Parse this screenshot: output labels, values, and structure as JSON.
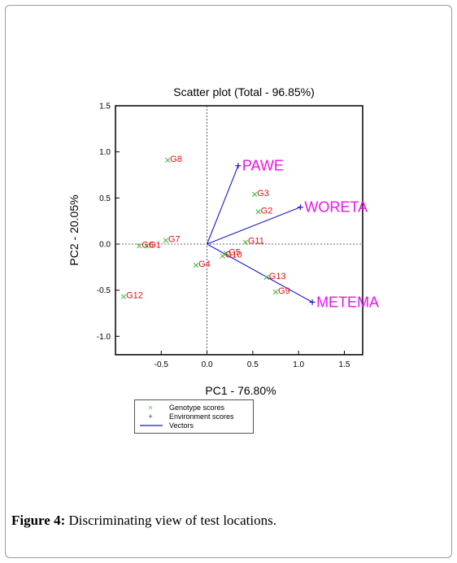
{
  "chart_data": {
    "type": "scatter",
    "title": "Scatter plot (Total - 96.85%)",
    "xlabel": "PC1 - 76.80%",
    "ylabel": "PC2 - 20.05%",
    "xlim": [
      -1.0,
      1.7
    ],
    "ylim": [
      -1.2,
      1.5
    ],
    "x_ticks": [
      -0.5,
      0.0,
      0.5,
      1.0,
      1.5
    ],
    "x_tick_labels": [
      "-0.5",
      "0.0",
      "0.5",
      "1.0",
      "1.5"
    ],
    "y_ticks": [
      -1.0,
      -0.5,
      0.0,
      0.5,
      1.0,
      1.5
    ],
    "y_tick_labels": [
      "-1.0",
      "-0.5",
      "0.0",
      "0.5",
      "1.0",
      "1.5"
    ],
    "reference_lines": "dotted lines at x=0 and y=0",
    "genotypes": [
      {
        "label": "G8",
        "x": -0.43,
        "y": 0.91
      },
      {
        "label": "G3",
        "x": 0.52,
        "y": 0.54
      },
      {
        "label": "G2",
        "x": 0.56,
        "y": 0.35
      },
      {
        "label": "G7",
        "x": -0.45,
        "y": 0.04
      },
      {
        "label": "G6",
        "x": -0.74,
        "y": -0.02
      },
      {
        "label": "G1",
        "x": -0.66,
        "y": -0.02
      },
      {
        "label": "G11",
        "x": 0.42,
        "y": 0.02
      },
      {
        "label": "G5",
        "x": 0.21,
        "y": -0.1
      },
      {
        "label": "G10",
        "x": 0.17,
        "y": -0.13
      },
      {
        "label": "G4",
        "x": -0.12,
        "y": -0.23
      },
      {
        "label": "G13",
        "x": 0.65,
        "y": -0.36
      },
      {
        "label": "G9",
        "x": 0.75,
        "y": -0.52
      },
      {
        "label": "G12",
        "x": -0.91,
        "y": -0.57
      }
    ],
    "environments": [
      {
        "label": "PAWE",
        "x": 0.34,
        "y": 0.85
      },
      {
        "label": "WORETA",
        "x": 1.02,
        "y": 0.4
      },
      {
        "label": "METEMA",
        "x": 1.15,
        "y": -0.63
      }
    ],
    "legend": {
      "position": "below plot",
      "entries": [
        {
          "symbol": "×",
          "label": "Genotype scores",
          "color": "#33bb33"
        },
        {
          "symbol": "+",
          "label": "Environment scores",
          "color": "#1a1acc"
        },
        {
          "symbol": "line",
          "label": "Vectors",
          "color": "#1a1acc"
        }
      ]
    },
    "colors": {
      "genotype_marker": "#33bb33",
      "genotype_label": "#dd1111",
      "environment_marker": "#1a1acc",
      "environment_label": "#ee11ee",
      "vector": "#1a1acc"
    }
  },
  "caption": {
    "prefix": "Figure 4:",
    "text": " Discriminating view of test locations."
  }
}
